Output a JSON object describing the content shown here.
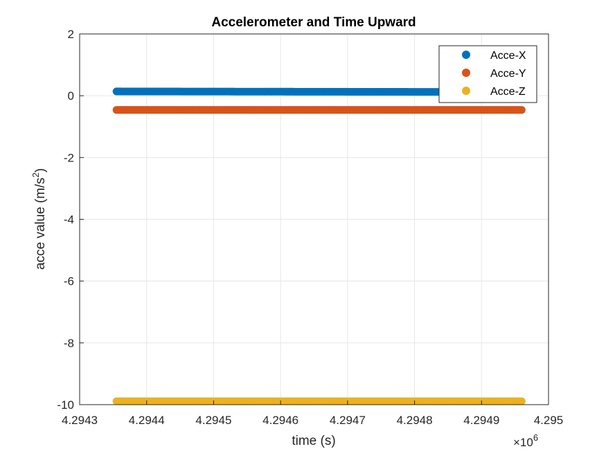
{
  "chart_data": {
    "type": "scatter",
    "title": "Accelerometer and Time Upward",
    "xlabel": "time (s)",
    "ylabel_main": "acce value (m/s",
    "ylabel_sup": "2",
    "ylabel_tail": ")",
    "x_multiplier": {
      "base": "×10",
      "exp": "6"
    },
    "xlim": [
      4.2943,
      4.295
    ],
    "ylim": [
      -10,
      2
    ],
    "x_tick_values": [
      4.2943,
      4.2944,
      4.2945,
      4.2946,
      4.2947,
      4.2948,
      4.2949,
      4.295
    ],
    "x_tick_labels": [
      "4.2943",
      "4.2944",
      "4.2945",
      "4.2946",
      "4.2947",
      "4.2948",
      "4.2949",
      "4.295"
    ],
    "y_tick_values": [
      2,
      0,
      -2,
      -4,
      -6,
      -8,
      -10
    ],
    "y_tick_labels": [
      "2",
      "0",
      "-2",
      "-4",
      "-6",
      "-8",
      "-10"
    ],
    "grid": true,
    "legend_position": "top-right",
    "x_range": [
      4.294355,
      4.29496
    ],
    "series": [
      {
        "name": "Acce-X",
        "color": "#0072BD",
        "y_start": 0.14,
        "y_end": 0.12
      },
      {
        "name": "Acce-Y",
        "color": "#D95319",
        "y_start": -0.46,
        "y_end": -0.46
      },
      {
        "name": "Acce-Z",
        "color": "#EDB120",
        "y_start": -9.89,
        "y_end": -9.89
      }
    ]
  }
}
